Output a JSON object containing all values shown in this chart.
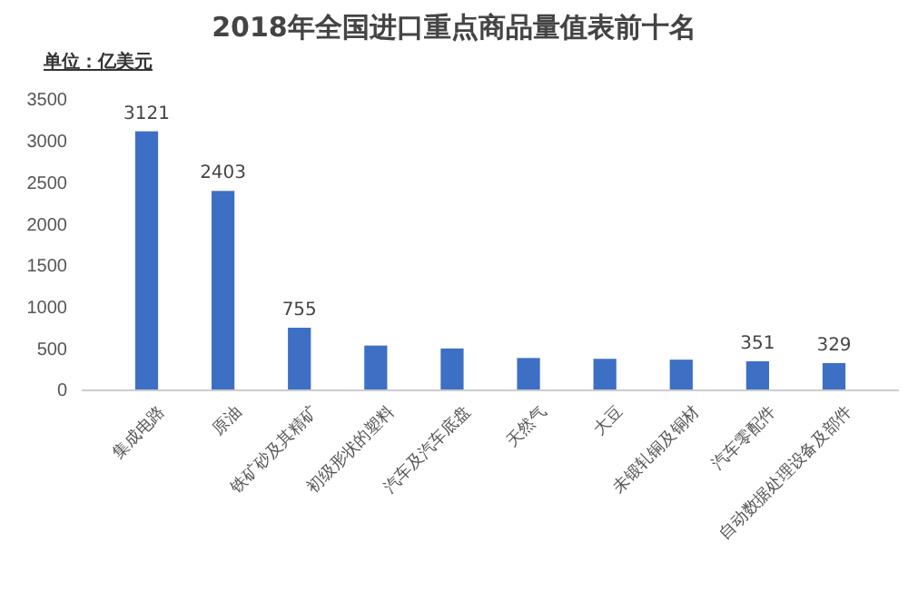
{
  "chart_data": {
    "type": "bar",
    "title": "2018年全国进口重点商品量值表前十名",
    "ylabel": "单位：亿美元",
    "categories": [
      "集成电路",
      "原油",
      "铁矿砂及其精矿",
      "初级形状的塑料",
      "汽车及汽车底盘",
      "天然气",
      "大豆",
      "未锻轧铜及铜材",
      "汽车零配件",
      "自动数据处理设备及部件"
    ],
    "values": [
      3121,
      2403,
      755,
      540,
      505,
      390,
      380,
      370,
      351,
      329
    ],
    "value_labels": [
      "3121",
      "2403",
      "755",
      null,
      null,
      null,
      null,
      null,
      "351",
      "329"
    ],
    "color": "#3d6fc4",
    "ylim": [
      0,
      3500
    ],
    "yticks": [
      0,
      500,
      1000,
      1500,
      2000,
      2500,
      3000,
      3500
    ],
    "grid": false
  }
}
